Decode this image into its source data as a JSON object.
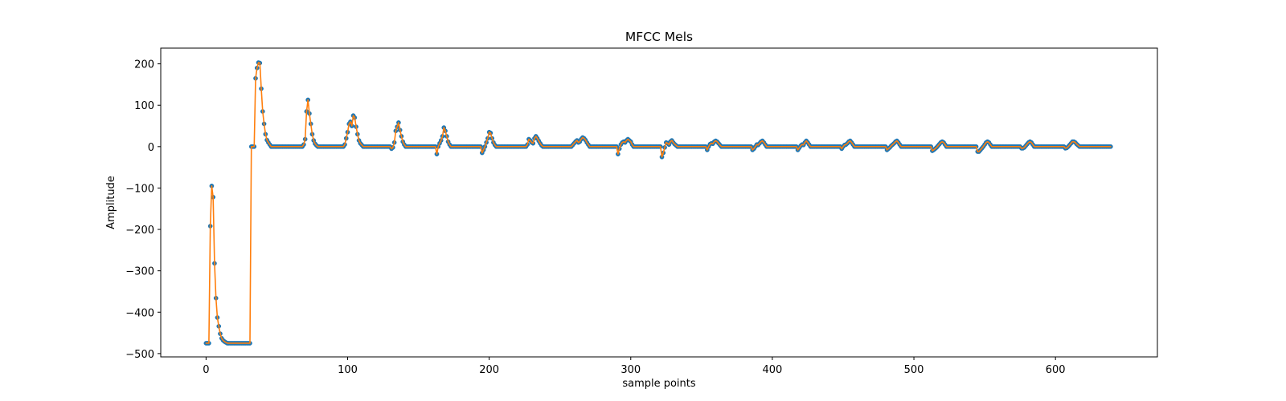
{
  "chart_data": {
    "type": "line",
    "title": "MFCC Mels",
    "xlabel": "sample points",
    "ylabel": "Amplitude",
    "xlim": [
      -32,
      672
    ],
    "ylim": [
      -508,
      238
    ],
    "xticks": [
      0,
      100,
      200,
      300,
      400,
      500,
      600
    ],
    "yticks": [
      -500,
      -400,
      -300,
      -200,
      -100,
      0,
      100,
      200
    ],
    "grid": false,
    "legend": "none",
    "n_points": 640,
    "series": [
      {
        "kind": "line",
        "color": "#ff7f0e",
        "shape": "sampled-mfcc",
        "anchors": [
          [
            0,
            -475
          ],
          [
            1,
            -475
          ],
          [
            2,
            -475
          ],
          [
            3,
            -192
          ],
          [
            4,
            -95
          ],
          [
            5,
            -122
          ],
          [
            6,
            -282
          ],
          [
            7,
            -366
          ],
          [
            8,
            -413
          ],
          [
            9,
            -434
          ],
          [
            10,
            -452
          ],
          [
            11,
            -463
          ],
          [
            12,
            -468
          ],
          [
            13,
            -471
          ],
          [
            14,
            -473
          ],
          [
            15,
            -475
          ],
          [
            16,
            -475
          ],
          [
            31,
            -475
          ],
          [
            32,
            0
          ],
          [
            33,
            0
          ],
          [
            34,
            0
          ],
          [
            35,
            165
          ],
          [
            36,
            190
          ],
          [
            37,
            203
          ],
          [
            38,
            202
          ],
          [
            39,
            140
          ],
          [
            40,
            85
          ],
          [
            41,
            55
          ],
          [
            42,
            30
          ],
          [
            43,
            16
          ],
          [
            44,
            10
          ],
          [
            45,
            5
          ],
          [
            46,
            0
          ],
          [
            68,
            0
          ],
          [
            69,
            5
          ],
          [
            70,
            18
          ],
          [
            71,
            85
          ],
          [
            72,
            113
          ],
          [
            73,
            80
          ],
          [
            74,
            55
          ],
          [
            75,
            30
          ],
          [
            76,
            15
          ],
          [
            77,
            7
          ],
          [
            78,
            3
          ],
          [
            79,
            0
          ],
          [
            97,
            0
          ],
          [
            98,
            5
          ],
          [
            99,
            20
          ],
          [
            100,
            35
          ],
          [
            101,
            55
          ],
          [
            102,
            60
          ],
          [
            103,
            50
          ],
          [
            104,
            75
          ],
          [
            105,
            70
          ],
          [
            106,
            48
          ],
          [
            107,
            30
          ],
          [
            108,
            15
          ],
          [
            109,
            8
          ],
          [
            110,
            4
          ],
          [
            111,
            0
          ],
          [
            130,
            0
          ],
          [
            131,
            -5
          ],
          [
            132,
            -2
          ],
          [
            133,
            10
          ],
          [
            134,
            38
          ],
          [
            135,
            48
          ],
          [
            136,
            58
          ],
          [
            137,
            40
          ],
          [
            138,
            25
          ],
          [
            139,
            12
          ],
          [
            140,
            5
          ],
          [
            141,
            0
          ],
          [
            162,
            0
          ],
          [
            163,
            -18
          ],
          [
            164,
            0
          ],
          [
            165,
            8
          ],
          [
            166,
            15
          ],
          [
            167,
            25
          ],
          [
            168,
            46
          ],
          [
            169,
            38
          ],
          [
            170,
            25
          ],
          [
            171,
            12
          ],
          [
            172,
            5
          ],
          [
            173,
            0
          ],
          [
            194,
            0
          ],
          [
            195,
            -15
          ],
          [
            196,
            -8
          ],
          [
            197,
            0
          ],
          [
            198,
            10
          ],
          [
            199,
            20
          ],
          [
            200,
            35
          ],
          [
            201,
            33
          ],
          [
            202,
            20
          ],
          [
            203,
            10
          ],
          [
            204,
            4
          ],
          [
            205,
            0
          ],
          [
            226,
            0
          ],
          [
            227,
            5
          ],
          [
            228,
            18
          ],
          [
            229,
            15
          ],
          [
            230,
            10
          ],
          [
            231,
            8
          ],
          [
            232,
            20
          ],
          [
            233,
            25
          ],
          [
            234,
            20
          ],
          [
            235,
            14
          ],
          [
            236,
            8
          ],
          [
            237,
            3
          ],
          [
            238,
            0
          ],
          [
            258,
            0
          ],
          [
            259,
            4
          ],
          [
            260,
            8
          ],
          [
            261,
            12
          ],
          [
            262,
            15
          ],
          [
            263,
            10
          ],
          [
            264,
            12
          ],
          [
            265,
            18
          ],
          [
            266,
            22
          ],
          [
            267,
            20
          ],
          [
            268,
            16
          ],
          [
            269,
            10
          ],
          [
            270,
            5
          ],
          [
            271,
            0
          ],
          [
            290,
            0
          ],
          [
            291,
            -18
          ],
          [
            292,
            -5
          ],
          [
            293,
            5
          ],
          [
            294,
            10
          ],
          [
            295,
            12
          ],
          [
            296,
            10
          ],
          [
            297,
            15
          ],
          [
            298,
            18
          ],
          [
            299,
            15
          ],
          [
            300,
            12
          ],
          [
            301,
            5
          ],
          [
            302,
            0
          ],
          [
            321,
            0
          ],
          [
            322,
            -25
          ],
          [
            323,
            -15
          ],
          [
            324,
            -2
          ],
          [
            325,
            10
          ],
          [
            326,
            8
          ],
          [
            327,
            5
          ],
          [
            328,
            12
          ],
          [
            329,
            15
          ],
          [
            330,
            10
          ],
          [
            331,
            6
          ],
          [
            332,
            3
          ],
          [
            333,
            0
          ],
          [
            353,
            0
          ],
          [
            354,
            -8
          ],
          [
            355,
            0
          ],
          [
            356,
            6
          ],
          [
            357,
            8
          ],
          [
            358,
            7
          ],
          [
            359,
            12
          ],
          [
            360,
            14
          ],
          [
            361,
            12
          ],
          [
            362,
            8
          ],
          [
            363,
            4
          ],
          [
            364,
            0
          ],
          [
            385,
            0
          ],
          [
            386,
            -8
          ],
          [
            387,
            -5
          ],
          [
            388,
            0
          ],
          [
            389,
            5
          ],
          [
            390,
            4
          ],
          [
            391,
            8
          ],
          [
            392,
            12
          ],
          [
            393,
            14
          ],
          [
            394,
            10
          ],
          [
            395,
            5
          ],
          [
            396,
            0
          ],
          [
            417,
            0
          ],
          [
            418,
            -8
          ],
          [
            419,
            -3
          ],
          [
            420,
            2
          ],
          [
            421,
            5
          ],
          [
            422,
            4
          ],
          [
            423,
            10
          ],
          [
            424,
            14
          ],
          [
            425,
            10
          ],
          [
            426,
            5
          ],
          [
            427,
            0
          ],
          [
            448,
            0
          ],
          [
            449,
            -5
          ],
          [
            450,
            0
          ],
          [
            451,
            4
          ],
          [
            452,
            5
          ],
          [
            453,
            8
          ],
          [
            454,
            12
          ],
          [
            455,
            14
          ],
          [
            456,
            10
          ],
          [
            457,
            5
          ],
          [
            458,
            0
          ],
          [
            480,
            0
          ],
          [
            481,
            -8
          ],
          [
            482,
            -5
          ],
          [
            483,
            -2
          ],
          [
            484,
            2
          ],
          [
            485,
            5
          ],
          [
            486,
            8
          ],
          [
            487,
            12
          ],
          [
            488,
            14
          ],
          [
            489,
            10
          ],
          [
            490,
            5
          ],
          [
            491,
            0
          ],
          [
            512,
            0
          ],
          [
            513,
            -10
          ],
          [
            514,
            -8
          ],
          [
            515,
            -5
          ],
          [
            516,
            -2
          ],
          [
            517,
            2
          ],
          [
            518,
            6
          ],
          [
            519,
            10
          ],
          [
            520,
            12
          ],
          [
            521,
            10
          ],
          [
            522,
            5
          ],
          [
            523,
            0
          ],
          [
            544,
            0
          ],
          [
            545,
            -12
          ],
          [
            546,
            -12
          ],
          [
            547,
            -8
          ],
          [
            548,
            -4
          ],
          [
            549,
            0
          ],
          [
            550,
            5
          ],
          [
            551,
            10
          ],
          [
            552,
            12
          ],
          [
            553,
            10
          ],
          [
            554,
            5
          ],
          [
            555,
            0
          ],
          [
            575,
            0
          ],
          [
            576,
            -4
          ],
          [
            577,
            -4
          ],
          [
            578,
            -2
          ],
          [
            579,
            2
          ],
          [
            580,
            6
          ],
          [
            581,
            10
          ],
          [
            582,
            12
          ],
          [
            583,
            10
          ],
          [
            584,
            5
          ],
          [
            585,
            0
          ],
          [
            606,
            0
          ],
          [
            607,
            -4
          ],
          [
            608,
            -3
          ],
          [
            609,
            0
          ],
          [
            610,
            4
          ],
          [
            611,
            8
          ],
          [
            612,
            12
          ],
          [
            613,
            12
          ],
          [
            614,
            10
          ],
          [
            615,
            6
          ],
          [
            616,
            3
          ],
          [
            617,
            0
          ],
          [
            639,
            0
          ]
        ]
      },
      {
        "kind": "scatter",
        "color": "#1f77b4",
        "marker": "circle",
        "same_data_as_line": true
      }
    ]
  }
}
